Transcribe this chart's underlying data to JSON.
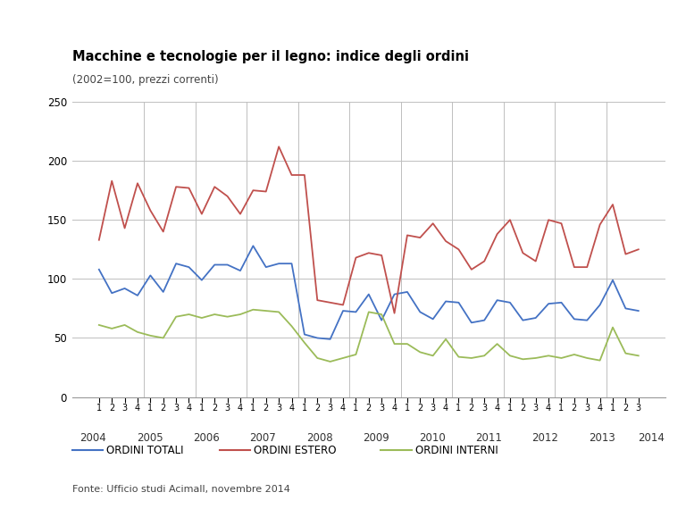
{
  "title": "Macchine e tecnologie per il legno: indice degli ordini",
  "subtitle": "(2002=100, prezzi correnti)",
  "source": "Fonte: Ufficio studi Acimall, novembre 2014",
  "years": [
    2004,
    2005,
    2006,
    2007,
    2008,
    2009,
    2010,
    2011,
    2012,
    2013,
    2014
  ],
  "quarters_per_year": [
    4,
    4,
    4,
    4,
    4,
    4,
    4,
    4,
    4,
    4,
    3
  ],
  "quarter_labels": [
    "1",
    "2",
    "3",
    "4",
    "1",
    "2",
    "3",
    "4",
    "1",
    "2",
    "3",
    "4",
    "1",
    "2",
    "3",
    "4",
    "1",
    "2",
    "3",
    "4",
    "1",
    "2",
    "3",
    "4",
    "1",
    "2",
    "3",
    "4",
    "1",
    "2",
    "3",
    "4",
    "1",
    "2",
    "3",
    "4",
    "1",
    "2",
    "3",
    "4",
    "1",
    "2",
    "3"
  ],
  "ordini_totali": [
    108,
    88,
    92,
    86,
    103,
    89,
    113,
    110,
    99,
    112,
    112,
    107,
    128,
    110,
    113,
    113,
    53,
    50,
    49,
    73,
    72,
    87,
    65,
    87,
    89,
    72,
    66,
    81,
    80,
    63,
    65,
    82,
    80,
    65,
    67,
    79,
    80,
    66,
    65,
    78,
    99,
    75,
    73
  ],
  "ordini_estero": [
    133,
    183,
    143,
    181,
    158,
    140,
    178,
    177,
    155,
    178,
    170,
    155,
    175,
    174,
    212,
    188,
    188,
    82,
    80,
    78,
    118,
    122,
    120,
    71,
    137,
    135,
    147,
    132,
    125,
    108,
    115,
    138,
    150,
    122,
    115,
    150,
    147,
    110,
    110,
    146,
    163,
    121,
    125
  ],
  "ordini_interni": [
    61,
    58,
    61,
    55,
    52,
    50,
    68,
    70,
    67,
    70,
    68,
    70,
    74,
    73,
    72,
    60,
    46,
    33,
    30,
    33,
    36,
    72,
    70,
    45,
    45,
    38,
    35,
    49,
    34,
    33,
    35,
    45,
    35,
    32,
    33,
    35,
    33,
    36,
    33,
    31,
    59,
    37,
    35
  ],
  "color_totali": "#4472C4",
  "color_estero": "#C0504D",
  "color_interni": "#9BBB59",
  "ylim": [
    0,
    250
  ],
  "yticks": [
    0,
    50,
    100,
    150,
    200,
    250
  ],
  "background_color": "#FFFFFF",
  "grid_color": "#BEBEBE",
  "legend_labels": [
    "ORDINI TOTALI",
    "ORDINI ESTERO",
    "ORDINI INTERNI"
  ]
}
